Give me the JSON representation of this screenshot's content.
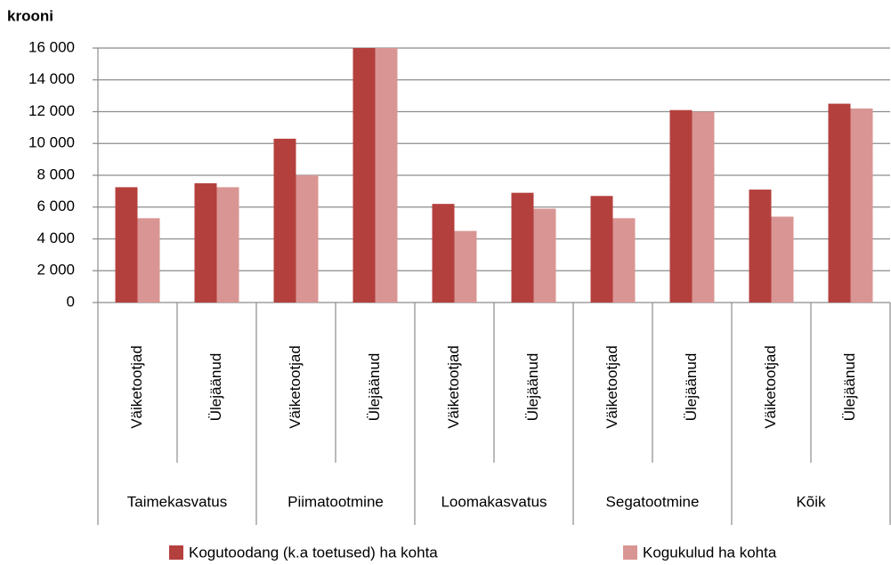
{
  "chart_data": {
    "type": "bar",
    "ylabel": "krooni",
    "categories": [
      "Väiketootjad",
      "Ülejäänud",
      "Väiketootjad",
      "Ülejäänud",
      "Väiketootjad",
      "Ülejäänud",
      "Väiketootjad",
      "Ülejäänud",
      "Väiketootjad",
      "Ülejäänud"
    ],
    "groups": [
      "Taimekasvatus",
      "Piimatootmine",
      "Loomakasvatus",
      "Segatootmine",
      "Kõik"
    ],
    "series": [
      {
        "name": "Kogutoodang (k.a toetused) ha kohta",
        "color": "#b4403e",
        "values": [
          7250,
          7500,
          10300,
          16000,
          6200,
          6900,
          6700,
          12100,
          7100,
          12500
        ]
      },
      {
        "name": "Kogukulud ha kohta",
        "color": "#d99593",
        "values": [
          5300,
          7250,
          8000,
          16000,
          4500,
          5900,
          5300,
          12000,
          5400,
          12200
        ]
      }
    ],
    "ylim": [
      0,
      16000
    ],
    "yticks": [
      0,
      {
        "value": 2000,
        "label": "2 000"
      },
      {
        "value": 4000,
        "label": "4 000"
      },
      {
        "value": 6000,
        "label": "6 000"
      },
      {
        "value": 8000,
        "label": "8 000"
      },
      {
        "value": 10000,
        "label": "10 000"
      },
      {
        "value": 12000,
        "label": "12 000"
      },
      {
        "value": 14000,
        "label": "14 000"
      },
      {
        "value": 16000,
        "label": "16 000"
      }
    ],
    "grid": true,
    "legend": "bottom"
  }
}
